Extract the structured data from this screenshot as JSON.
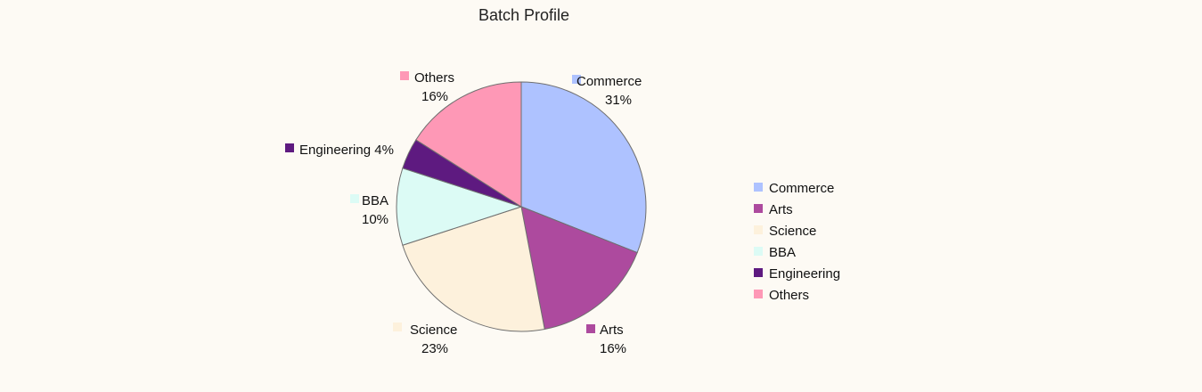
{
  "chart_data": {
    "type": "pie",
    "title": "Batch Profile",
    "legend_position": "right",
    "slices": [
      {
        "name": "Commerce",
        "value": 31,
        "label": "31%",
        "color": "#aec2ff"
      },
      {
        "name": "Arts",
        "value": 16,
        "label": "16%",
        "color": "#ad4a9e"
      },
      {
        "name": "Science",
        "value": 23,
        "label": "23%",
        "color": "#fdf1dc"
      },
      {
        "name": "BBA",
        "value": 10,
        "label": "10%",
        "color": "#dcfbf5"
      },
      {
        "name": "Engineering",
        "value": 4,
        "label": "4%",
        "color": "#5e1a80"
      },
      {
        "name": "Others",
        "value": 16,
        "label": "16%",
        "color": "#fe98b6"
      }
    ],
    "legend": [
      "Commerce",
      "Arts",
      "Science",
      "BBA",
      "Engineering",
      "Others"
    ]
  }
}
